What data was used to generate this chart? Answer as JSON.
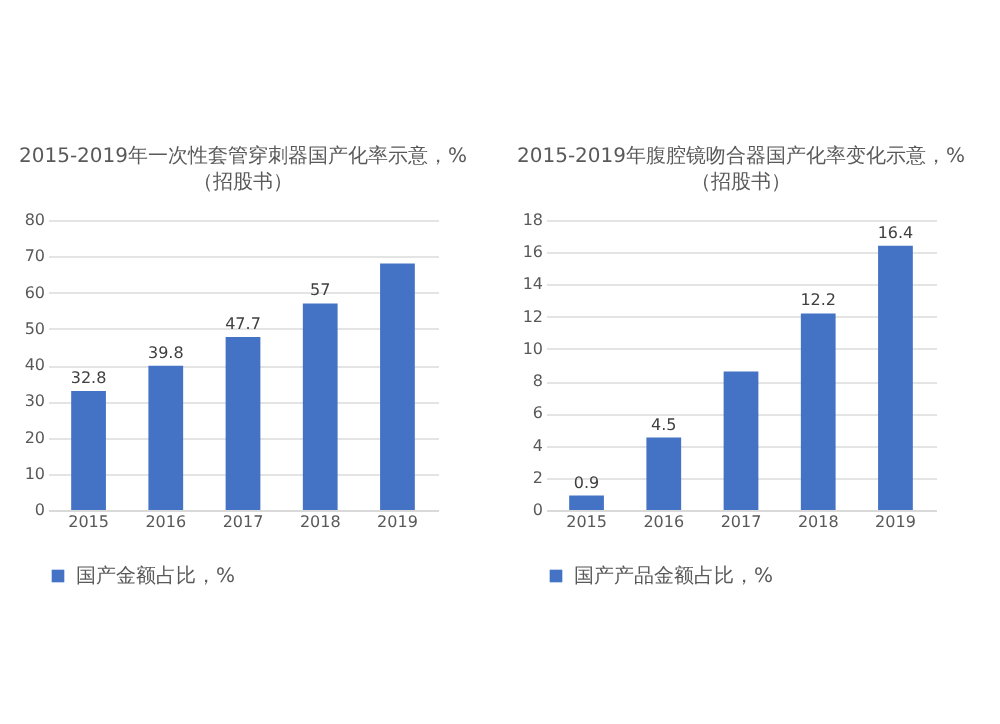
{
  "chart_data": [
    {
      "type": "bar",
      "title": "2015-2019年一次性套管穿刺器国产化率示意，%",
      "subtitle": "（招股书）",
      "categories": [
        "2015",
        "2016",
        "2017",
        "2018",
        "2019"
      ],
      "series": [
        {
          "name": "国产金额占比，%",
          "color": "#4472c4",
          "values": [
            32.8,
            39.8,
            47.7,
            57,
            68
          ],
          "value_labels": [
            "32.8",
            "39.8",
            "47.7",
            "57",
            null
          ]
        }
      ],
      "ylim": [
        0,
        80
      ],
      "yticks": [
        0,
        10,
        20,
        30,
        40,
        50,
        60,
        70,
        80
      ],
      "grid": "y",
      "legend": "bottom"
    },
    {
      "type": "bar",
      "title": "2015-2019年腹腔镜吻合器国产化率变化示意，%",
      "subtitle": "（招股书）",
      "categories": [
        "2015",
        "2016",
        "2017",
        "2018",
        "2019"
      ],
      "series": [
        {
          "name": "国产产品金额占比，%",
          "color": "#4472c4",
          "values": [
            0.9,
            4.5,
            8.6,
            12.2,
            16.4
          ],
          "value_labels": [
            "0.9",
            "4.5",
            null,
            "12.2",
            "16.4"
          ]
        }
      ],
      "ylim": [
        0,
        18
      ],
      "yticks": [
        0,
        2,
        4,
        6,
        8,
        10,
        12,
        14,
        16,
        18
      ],
      "grid": "y",
      "legend": "bottom"
    }
  ]
}
